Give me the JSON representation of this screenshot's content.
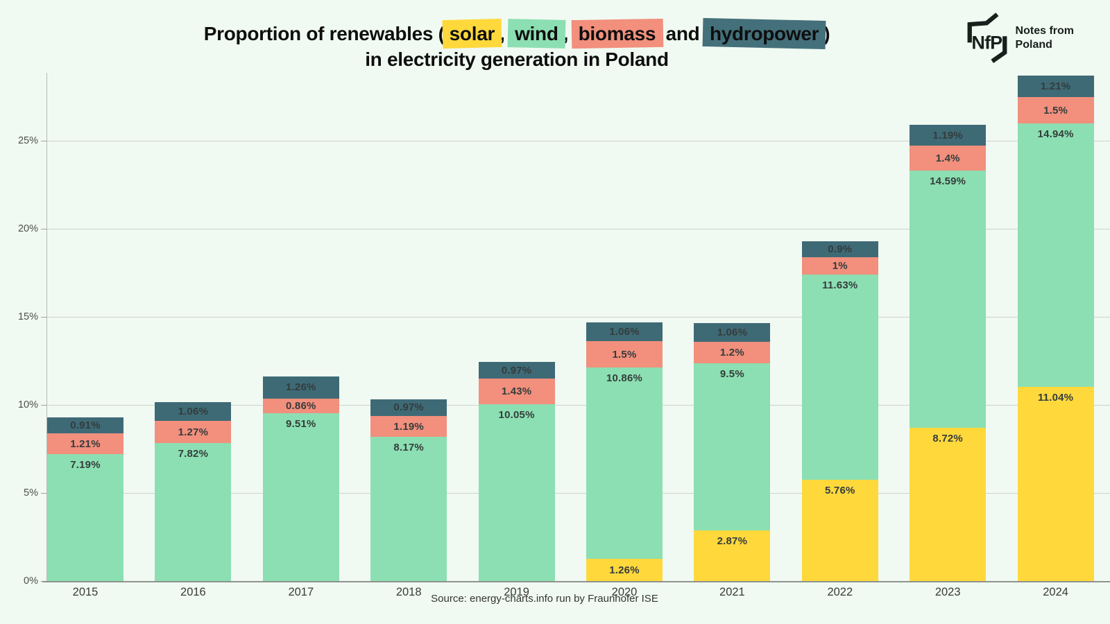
{
  "title": {
    "line1_prefix": "Proportion of renewables (",
    "solar_word": "solar",
    "sep1": ",",
    "wind_word": "wind",
    "sep2": ",",
    "biomass_word": "biomass",
    "sep3": "and",
    "hydro_word": "hydropower",
    "line1_suffix": ")",
    "line2": "in electricity generation in Poland"
  },
  "logo": {
    "abbr": "NfP",
    "name_line1": "Notes from",
    "name_line2": "Poland"
  },
  "source": "Source: energy-charts.info run by Fraunhofer ISE",
  "colors": {
    "background": "#F0FAF2",
    "solar": "#FFD83C",
    "wind": "#8CDFB2",
    "biomass": "#F28F7D",
    "hydropower": "#3E6A76",
    "label_text": "#343C3C"
  },
  "chart_data": {
    "type": "bar",
    "stacked": true,
    "grid": "horizontal",
    "legend_position": "inline-title-highlights",
    "categories": [
      "2015",
      "2016",
      "2017",
      "2018",
      "2019",
      "2020",
      "2021",
      "2022",
      "2023",
      "2024"
    ],
    "series": [
      {
        "name": "solar",
        "values": [
          0,
          0,
          0,
          0,
          0,
          1.26,
          2.87,
          5.76,
          8.72,
          11.04
        ],
        "labels": [
          "",
          "",
          "",
          "",
          "",
          "1.26%",
          "2.87%",
          "5.76%",
          "8.72%",
          "11.04%"
        ]
      },
      {
        "name": "wind",
        "values": [
          7.19,
          7.82,
          9.51,
          8.17,
          10.05,
          10.86,
          9.5,
          11.63,
          14.59,
          14.94
        ],
        "labels": [
          "7.19%",
          "7.82%",
          "9.51%",
          "8.17%",
          "10.05%",
          "10.86%",
          "9.5%",
          "11.63%",
          "14.59%",
          "14.94%"
        ]
      },
      {
        "name": "biomass",
        "values": [
          1.21,
          1.27,
          0.86,
          1.19,
          1.43,
          1.5,
          1.2,
          1,
          1.4,
          1.5
        ],
        "labels": [
          "1.21%",
          "1.27%",
          "0.86%",
          "1.19%",
          "1.43%",
          "1.5%",
          "1.2%",
          "1%",
          "1.4%",
          "1.5%"
        ]
      },
      {
        "name": "hydropower",
        "values": [
          0.91,
          1.06,
          1.26,
          0.97,
          0.97,
          1.06,
          1.06,
          0.9,
          1.19,
          1.21
        ],
        "labels": [
          "0.91%",
          "1.06%",
          "1.26%",
          "0.97%",
          "0.97%",
          "1.06%",
          "1.06%",
          "0.9%",
          "1.19%",
          "1.21%"
        ]
      }
    ],
    "totals": [
      9.31,
      10.15,
      11.63,
      10.33,
      12.45,
      14.68,
      14.63,
      19.29,
      25.9,
      28.69
    ],
    "yticks": [
      "0%",
      "5%",
      "10%",
      "15%",
      "20%",
      "25%"
    ],
    "ytick_values": [
      0,
      5,
      10,
      15,
      20,
      25
    ],
    "ylim": [
      0,
      28.85
    ],
    "xlabel": "",
    "ylabel": ""
  }
}
